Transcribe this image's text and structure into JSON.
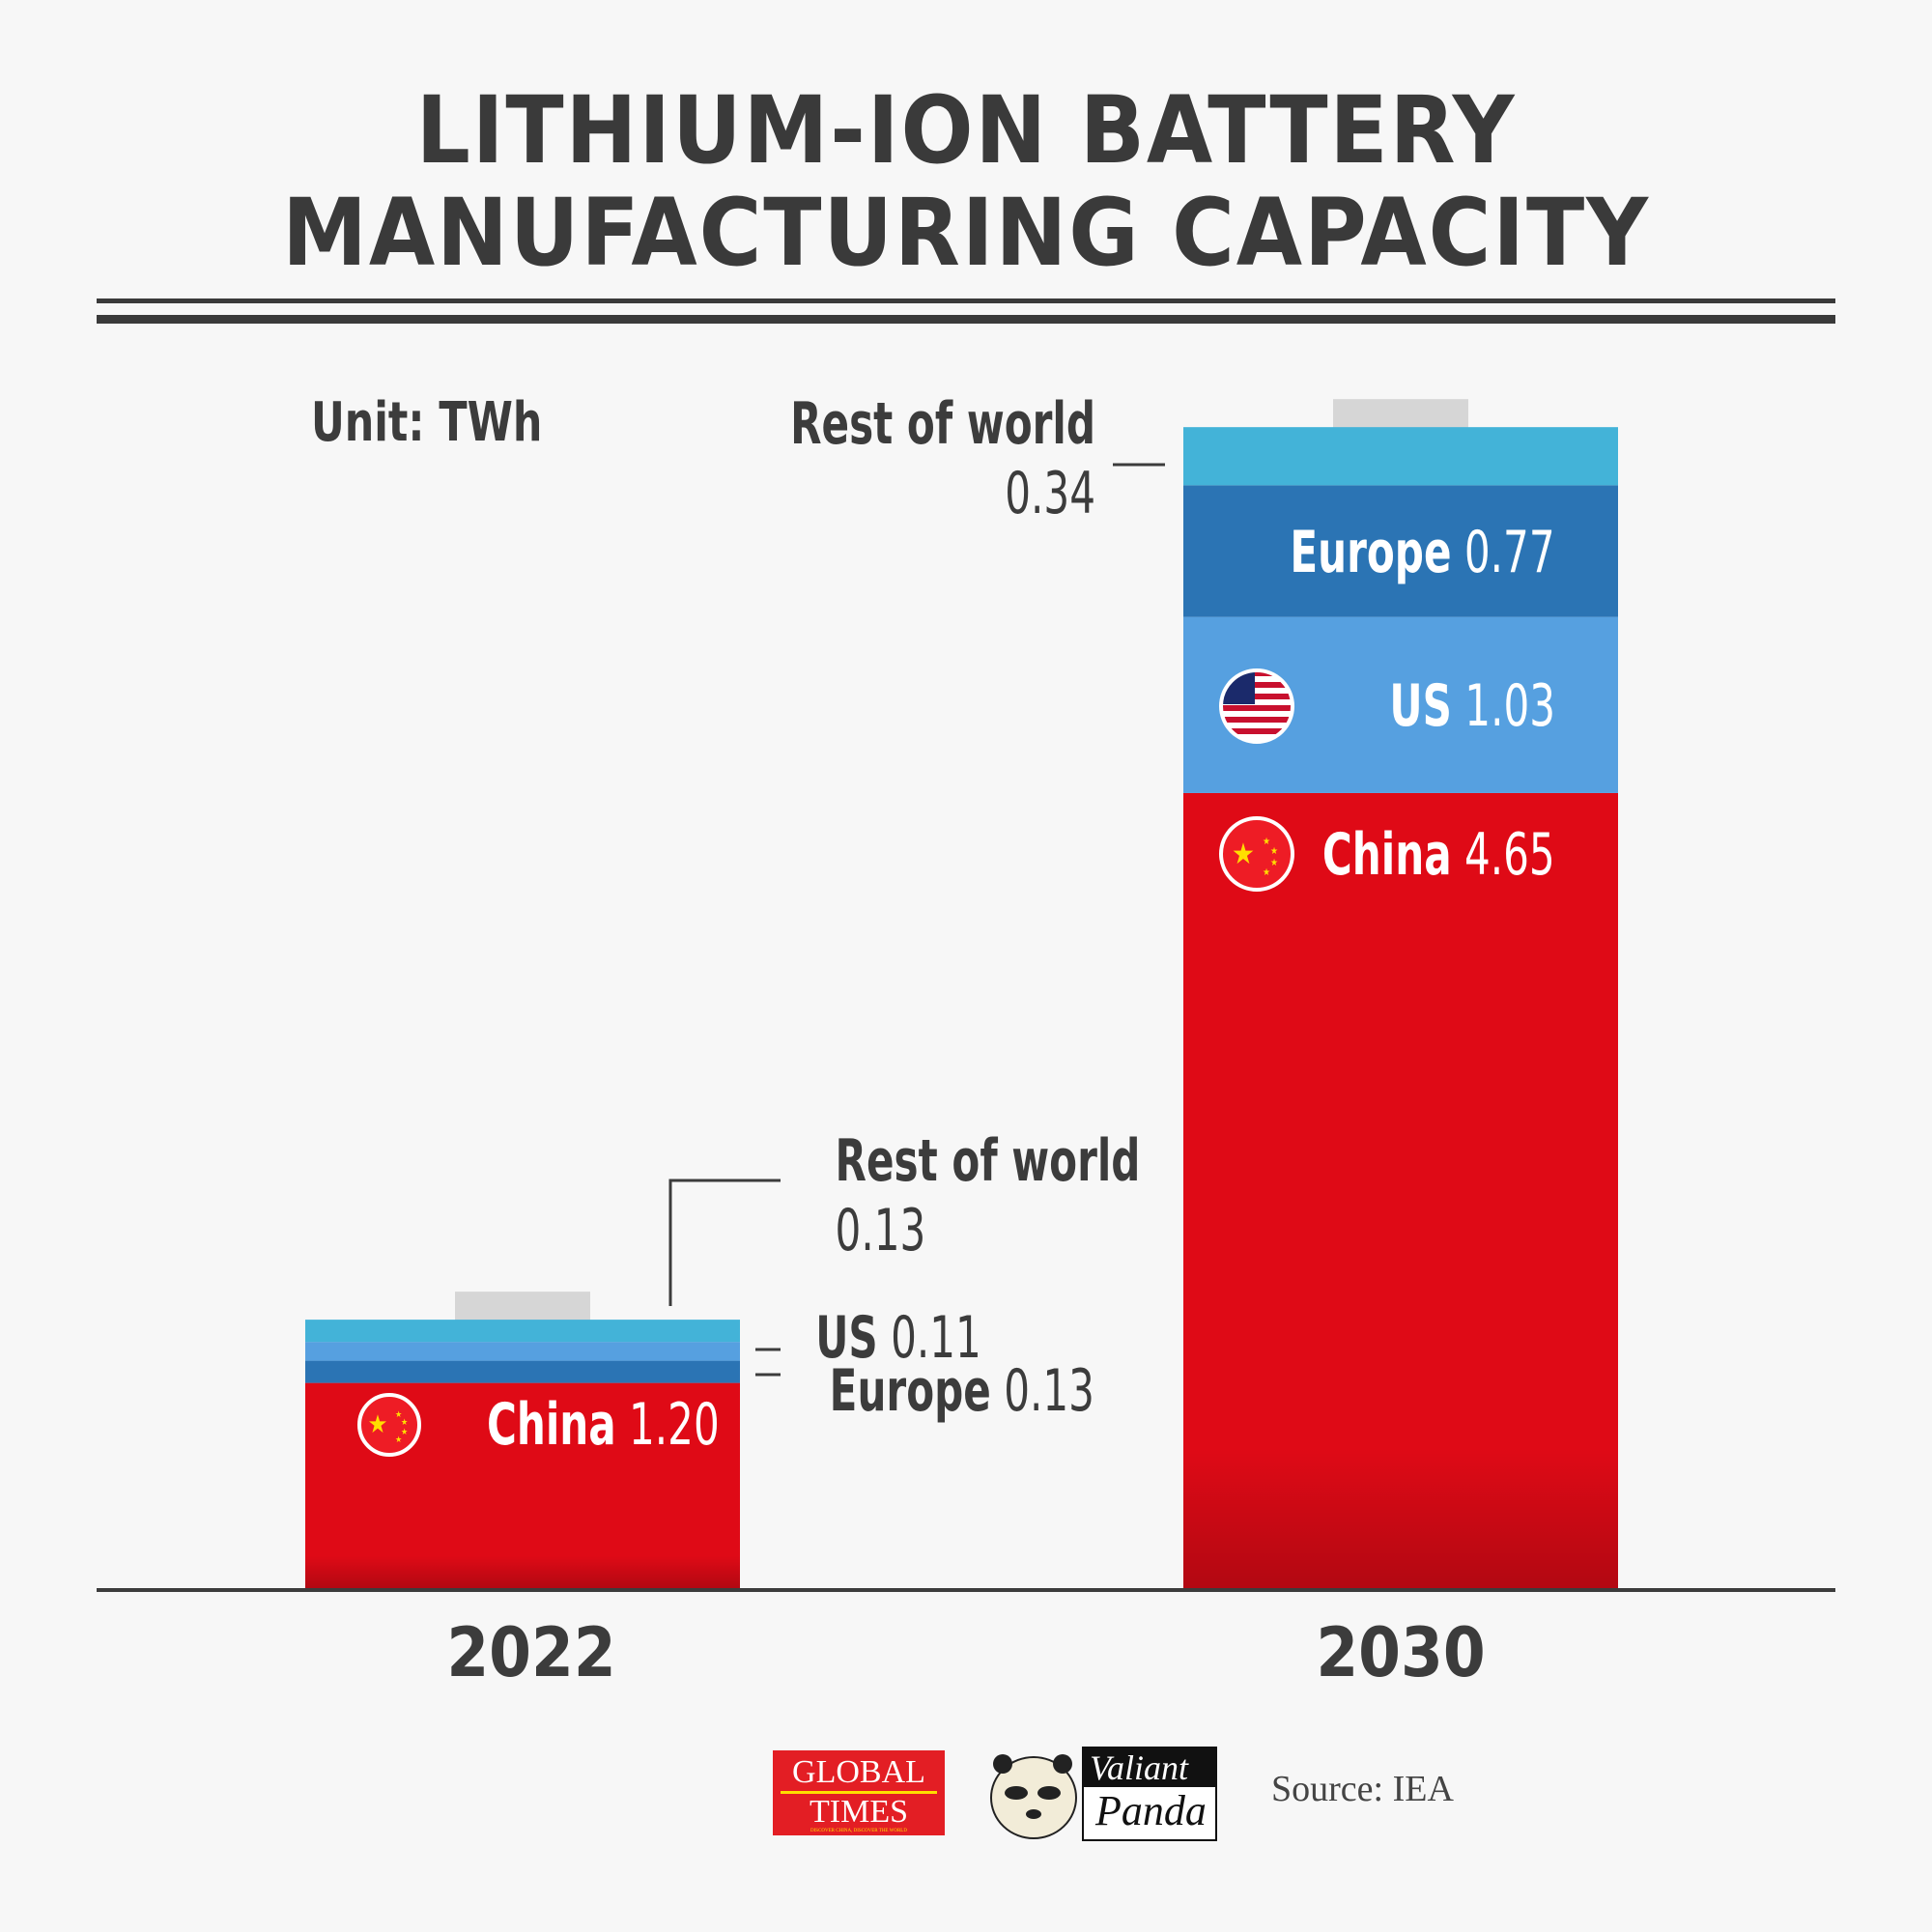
{
  "title": [
    "LITHIUM-ION BATTERY",
    "MANUFACTURING CAPACITY"
  ],
  "unit": "Unit: TWh",
  "source": "Source: IEA",
  "logos": {
    "global_times": [
      "GLOBAL",
      "TIMES",
      "DISCOVER CHINA, DISCOVER THE WORLD"
    ],
    "valiant_panda": [
      "Valiant",
      "Panda"
    ]
  },
  "colors": {
    "China": "#df0a16",
    "US": "#56a0e0",
    "Europe": "#2b74b4",
    "Rest of world": "#43b3d8",
    "cap": "#d6d6d6",
    "text": "#3c3c3c"
  },
  "chart_data": {
    "type": "bar",
    "stacked": true,
    "unit": "TWh",
    "categories": [
      "2022",
      "2030"
    ],
    "bars": [
      {
        "category": "2022",
        "segments": [
          {
            "name": "China",
            "value": 1.2
          },
          {
            "name": "Europe",
            "value": 0.13
          },
          {
            "name": "US",
            "value": 0.11
          },
          {
            "name": "Rest of world",
            "value": 0.13
          }
        ]
      },
      {
        "category": "2030",
        "segments": [
          {
            "name": "China",
            "value": 4.65
          },
          {
            "name": "US",
            "value": 1.03
          },
          {
            "name": "Europe",
            "value": 0.77
          },
          {
            "name": "Rest of world",
            "value": 0.34
          }
        ]
      }
    ],
    "labels": {
      "b0_china": [
        "China",
        "1.20"
      ],
      "b0_eu": [
        "Europe",
        "0.13"
      ],
      "b0_us": [
        "US",
        "0.11"
      ],
      "b0_row": [
        "Rest of world",
        "0.13"
      ],
      "b1_china": [
        "China",
        "4.65"
      ],
      "b1_eu": [
        "Europe",
        "0.77"
      ],
      "b1_us": [
        "US",
        "1.03"
      ],
      "b1_row": [
        "Rest of world",
        "0.34"
      ]
    }
  }
}
